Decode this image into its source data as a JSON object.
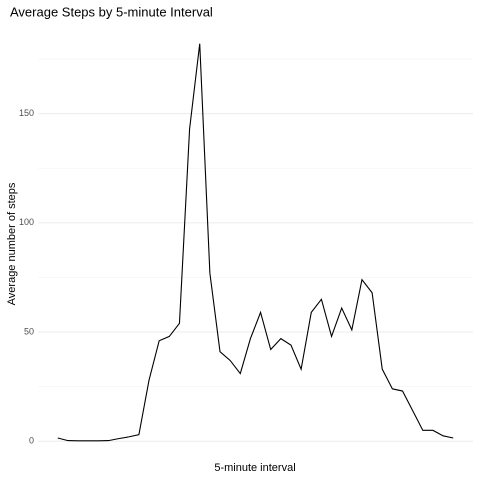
{
  "chart_data": {
    "type": "line",
    "title": "Average Steps by 5-minute Interval",
    "xlabel": "5-minute interval",
    "ylabel": "Average number of steps",
    "x": [
      0,
      1,
      2,
      3,
      4,
      5,
      6,
      7,
      8,
      9,
      10,
      11,
      12,
      13,
      14,
      15,
      16,
      17,
      18,
      19,
      20,
      21,
      22,
      23,
      24,
      25,
      26,
      27,
      28,
      29,
      30,
      31,
      32,
      33,
      34,
      35,
      36,
      37,
      38,
      39
    ],
    "series": [
      {
        "name": "steps",
        "color": "#000000",
        "values": [
          1.5,
          0.3,
          0.2,
          0.2,
          0.2,
          0.3,
          1.2,
          2,
          3,
          28,
          46,
          48,
          54,
          143,
          182,
          77,
          41,
          37,
          31,
          47,
          59,
          42,
          47,
          44,
          33,
          59,
          65,
          48,
          61,
          51,
          74,
          68,
          33,
          24,
          23,
          14,
          5,
          5,
          2.5,
          1.5
        ]
      }
    ],
    "xlim": [
      -1.95,
      40.95
    ],
    "ylim": [
      -4,
      186
    ],
    "yticks": [
      0,
      50,
      100,
      150
    ],
    "minor_yticks": [
      25,
      75,
      125,
      175
    ],
    "grid": true
  }
}
